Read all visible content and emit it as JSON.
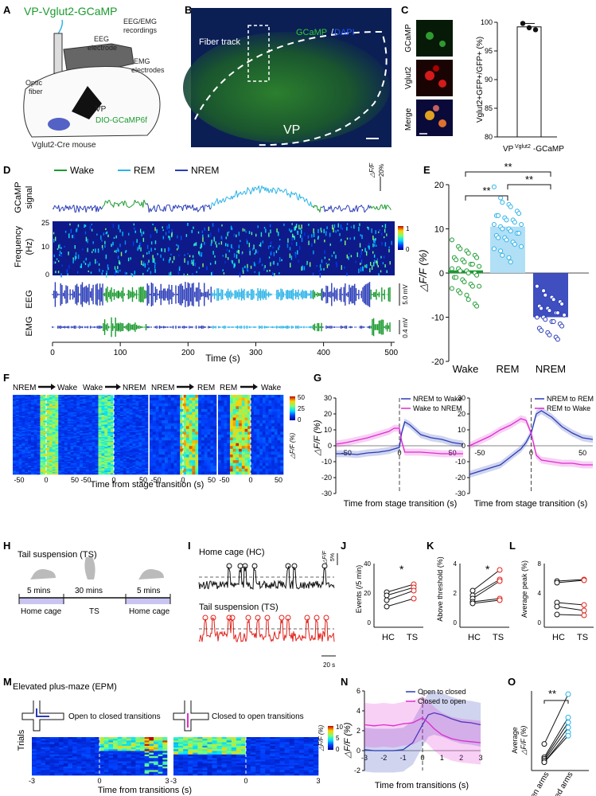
{
  "panels": {
    "A": "A",
    "B": "B",
    "C": "C",
    "D": "D",
    "E": "E",
    "F": "F",
    "G": "G",
    "H": "H",
    "I": "I",
    "J": "J",
    "K": "K",
    "L": "L",
    "M": "M",
    "N": "N",
    "O": "O"
  },
  "colors": {
    "wake": "#1a9a2e",
    "rem": "#2ab3e8",
    "nrem": "#2a3cb8",
    "magenta": "#e02bd0",
    "red": "#e0231c",
    "black": "#111111",
    "gfp": "#33cc33",
    "dapi": "#2255ff"
  },
  "A": {
    "title": "VP-Vglut2-GCaMP",
    "eeg_emg": "EEG/EMG",
    "recordings": "recordings",
    "eeg1": "EEG",
    "eeg2": "electrode",
    "emg1": "EMG",
    "emg2": "electrodes",
    "optic1": "Optic",
    "optic2": "fiber",
    "vp": "VP",
    "dio": "DIO-GCaMP6f",
    "mouse": "Vglut2-Cre mouse"
  },
  "B": {
    "gcamp": "GCaMP",
    "sep": "/",
    "dapi": "DAPI",
    "fiber": "Fiber  track",
    "vp": "VP"
  },
  "C": {
    "row1": "GCaMP",
    "row2": "Vglut2",
    "row3": "Merge",
    "ylabel": "Vglut2+GFP+/GFP+ (%)",
    "xlabel": "VP",
    "xsup": "Vglut2",
    "xsuffix": "-GCaMP"
  },
  "D": {
    "wake": "Wake",
    "rem": "REM",
    "nrem": "NREM",
    "gcamp1": "GCaMP",
    "gcamp2": "signal",
    "freq": "Frequency",
    "hz": "(Hz)",
    "eeg": "EEG",
    "emg": "EMG",
    "xlabel": "Time (s)",
    "scale_dff": "△F/F",
    "scale_20": "20%",
    "eeg_scale": "5.0 mV",
    "emg_scale": "0.4 mV",
    "freq_ticks": [
      "25",
      "10",
      "0"
    ],
    "cbar": [
      "1",
      "0"
    ],
    "xticks": [
      "0",
      "100",
      "200",
      "300",
      "400",
      "500"
    ]
  },
  "E": {
    "ylabel": "△F/F (%)",
    "sig": "**"
  },
  "F": {
    "t1a": "NREM",
    "t1b": "Wake",
    "t2a": "Wake",
    "t2b": "NREM",
    "t3a": "NREM",
    "t3b": "REM",
    "t4a": "REM",
    "t4b": "Wake",
    "xlabel": "Time from stage transition (s)",
    "xticks": [
      "-50",
      "0",
      "50",
      "-50",
      "0",
      "50",
      "-50",
      "0",
      "50",
      "-50",
      "0",
      "50"
    ],
    "cbar_label": "△F/F (%)",
    "cbar": [
      "50",
      "25",
      "0"
    ]
  },
  "G": {
    "left_legend": [
      "NREM to Wake",
      "Wake to NREM"
    ],
    "right_legend": [
      "NREM to REM",
      "REM to Wake"
    ],
    "ylabel": "△F/F (%)",
    "xlabel": "Time from stage transition (s)"
  },
  "H": {
    "title": "Tail suspension (TS)",
    "d1": "5 mins",
    "d2": "30 mins",
    "d3": "5 mins",
    "l1": "Home cage",
    "l2": "TS",
    "l3": "Home cage"
  },
  "I": {
    "hc": "Home cage (HC)",
    "ts": "Tail suspension (TS)",
    "scale_dff": "△F/F",
    "scale_5": "5%",
    "time_scale": "20 s"
  },
  "J": {
    "ylabel": "Events (/5 min)",
    "sig": "*",
    "yticks": [
      "40",
      "20",
      "0"
    ]
  },
  "K": {
    "ylabel": "Above threshold (%)",
    "sig": "*",
    "yticks": [
      "4",
      "2",
      "0"
    ]
  },
  "L": {
    "ylabel": "Average peak (%)",
    "yticks": [
      "8",
      "4",
      "0"
    ]
  },
  "pair_x": [
    "HC",
    "TS"
  ],
  "M": {
    "title": "Elevated plus-maze (EPM)",
    "open_closed": "Open to closed transitions",
    "closed_open": "Closed to open transitions",
    "ylabel": "Trials",
    "xlabel": "Time from transitions (s)",
    "xticks": [
      "-3",
      "0",
      "3"
    ],
    "cbar_label": "△F/F (%)",
    "cbar": [
      "10",
      "5",
      "0"
    ]
  },
  "N": {
    "legend": [
      "Open to closed",
      "Closed to open"
    ],
    "ylabel": "△F/F (%)",
    "xlabel": "Time from transitions (s)"
  },
  "O": {
    "ylabel1": "Average",
    "ylabel2": "△F/F (%)",
    "sig": "**",
    "x1": "Open arms",
    "x2": "Closed arms"
  },
  "chart_data": [
    {
      "type": "bar",
      "id": "C",
      "title": "",
      "xlabel": "VP Vglut2-GCaMP",
      "ylabel": "Vglut2+GFP+/GFP+ (%)",
      "categories": [
        "VP-Vglut2-GCaMP"
      ],
      "values": [
        99.2
      ],
      "points": [
        99.8,
        99.6,
        98.7
      ],
      "ylim": [
        80,
        100
      ],
      "yticks": [
        80,
        85,
        90,
        95,
        100
      ]
    },
    {
      "type": "bar",
      "id": "E",
      "ylabel": "△F/F (%)",
      "categories": [
        "Wake",
        "REM",
        "NREM"
      ],
      "values": [
        0.6,
        10.5,
        -10.0
      ],
      "ylim": [
        -20,
        20
      ],
      "yticks": [
        -20,
        -10,
        0,
        10,
        20
      ],
      "points": {
        "Wake": [
          7.5,
          6,
          5.5,
          5,
          4.5,
          4,
          3.5,
          3.5,
          3,
          3,
          2.5,
          2,
          2,
          1.5,
          1,
          1,
          0.5,
          0.5,
          0,
          0,
          -0.5,
          -1,
          -1,
          -1.5,
          -2,
          -2.5,
          -3,
          -3,
          -3.5,
          -4,
          -4.5,
          -5,
          -6,
          -7,
          -7.5
        ],
        "REM": [
          19.5,
          17,
          16,
          15.5,
          15,
          14,
          13.5,
          13,
          13,
          12.5,
          12,
          12,
          11.5,
          11,
          11,
          10.5,
          10,
          10,
          9.5,
          9,
          9,
          8.5,
          8,
          8,
          7.5,
          7,
          6.5,
          6,
          5.5,
          5,
          4,
          3.5,
          2.5
        ],
        "NREM": [
          -3,
          -4,
          -5,
          -5.5,
          -6,
          -6.5,
          -7,
          -7.5,
          -8,
          -8,
          -8.5,
          -9,
          -9,
          -9.5,
          -10,
          -10,
          -10.5,
          -11,
          -11,
          -11.5,
          -12,
          -12.5,
          -13,
          -13.5,
          -14,
          -14.5,
          -15
        ]
      },
      "comparisons": [
        [
          "Wake",
          "REM",
          "**"
        ],
        [
          "REM",
          "NREM",
          "**"
        ],
        [
          "Wake",
          "NREM",
          "**"
        ]
      ]
    },
    {
      "type": "line",
      "id": "G-left",
      "x_range": [
        -60,
        60
      ],
      "xticks": [
        -50,
        0,
        50
      ],
      "ylim": [
        -30,
        30
      ],
      "yticks": [
        -30,
        -20,
        -10,
        0,
        10,
        20,
        30
      ],
      "series": [
        {
          "name": "NREM to Wake",
          "color": "#2a3cb8",
          "x": [
            -60,
            -50,
            -40,
            -30,
            -20,
            -10,
            -5,
            0,
            2,
            5,
            10,
            20,
            30,
            40,
            50,
            60
          ],
          "y": [
            -5,
            -5,
            -5.5,
            -4.5,
            -4,
            -3,
            -2,
            -1,
            8,
            15,
            13,
            7,
            5,
            4,
            2,
            1
          ]
        },
        {
          "name": "Wake to NREM",
          "color": "#e02bd0",
          "x": [
            -60,
            -50,
            -40,
            -30,
            -20,
            -10,
            -5,
            0,
            2,
            5,
            10,
            20,
            30,
            40,
            50,
            60
          ],
          "y": [
            1,
            2,
            3.5,
            5,
            7,
            9,
            11,
            11,
            3,
            -4,
            -4,
            -4,
            -4.5,
            -5,
            -5,
            -5
          ]
        }
      ]
    },
    {
      "type": "line",
      "id": "G-right",
      "x_range": [
        -60,
        60
      ],
      "xticks": [
        -50,
        0,
        50
      ],
      "ylim": [
        -30,
        30
      ],
      "yticks": [
        -30,
        -20,
        -10,
        0,
        10,
        20,
        30
      ],
      "series": [
        {
          "name": "NREM to REM",
          "color": "#2a3cb8",
          "x": [
            -60,
            -50,
            -40,
            -30,
            -20,
            -10,
            -5,
            0,
            5,
            10,
            20,
            30,
            40,
            50,
            60
          ],
          "y": [
            -18,
            -16,
            -14,
            -12,
            -7,
            -2,
            2,
            8,
            20,
            22,
            18,
            12,
            8,
            5,
            4
          ]
        },
        {
          "name": "REM to Wake",
          "color": "#e02bd0",
          "x": [
            -60,
            -50,
            -40,
            -30,
            -20,
            -10,
            -5,
            0,
            5,
            10,
            20,
            30,
            40,
            50,
            60
          ],
          "y": [
            0,
            3,
            6,
            10,
            13,
            17,
            16,
            8,
            -6,
            -9,
            -10,
            -11,
            -11,
            -12,
            -12
          ]
        }
      ]
    },
    {
      "type": "line",
      "id": "J",
      "categories": [
        "HC",
        "TS"
      ],
      "ylabel": "Events (/5 min)",
      "ylim": [
        0,
        40
      ],
      "pairs": [
        [
          22,
          27
        ],
        [
          20,
          25
        ],
        [
          17,
          23
        ],
        [
          13,
          18
        ]
      ]
    },
    {
      "type": "line",
      "id": "K",
      "categories": [
        "HC",
        "TS"
      ],
      "ylabel": "Above threshold (%)",
      "ylim": [
        0,
        4
      ],
      "pairs": [
        [
          2.3,
          3.6
        ],
        [
          2.0,
          3.0
        ],
        [
          1.8,
          2.9
        ],
        [
          1.6,
          1.8
        ],
        [
          1.5,
          1.7
        ]
      ]
    },
    {
      "type": "line",
      "id": "L",
      "categories": [
        "HC",
        "TS"
      ],
      "ylabel": "Average peak (%)",
      "ylim": [
        0,
        8
      ],
      "pairs": [
        [
          5.8,
          6.0
        ],
        [
          5.6,
          5.9
        ],
        [
          3.1,
          2.8
        ],
        [
          2.6,
          2.1
        ],
        [
          1.6,
          1.5
        ]
      ]
    },
    {
      "type": "line",
      "id": "N",
      "x_range": [
        -3,
        3
      ],
      "xticks": [
        -3,
        -2,
        -1,
        0,
        1,
        2,
        3
      ],
      "ylim": [
        -2,
        6
      ],
      "yticks": [
        -2,
        0,
        2,
        4,
        6
      ],
      "series": [
        {
          "name": "Open to closed",
          "color": "#2a3cb8",
          "x": [
            -3,
            -2.5,
            -2,
            -1.5,
            -1,
            -0.5,
            0,
            0.3,
            0.6,
            1,
            1.5,
            2,
            2.5,
            3
          ],
          "y": [
            0.1,
            0,
            0,
            0,
            0.1,
            0.8,
            2.6,
            3.6,
            3.8,
            3.6,
            3.2,
            2.9,
            2.8,
            2.6
          ]
        },
        {
          "name": "Closed to open",
          "color": "#e02bd0",
          "x": [
            -3,
            -2.5,
            -2,
            -1.5,
            -1,
            -0.5,
            0,
            0.3,
            0.6,
            1,
            1.5,
            2,
            2.5,
            3
          ],
          "y": [
            2.6,
            2.5,
            2.6,
            2.5,
            2.7,
            2.8,
            3.3,
            2.8,
            2.2,
            1.6,
            1.2,
            1.0,
            0.9,
            0.8
          ]
        }
      ]
    },
    {
      "type": "line",
      "id": "O",
      "categories": [
        "Open arms",
        "Closed arms"
      ],
      "ylabel": "Average △F/F (%)",
      "ylim": [
        0,
        4.8
      ],
      "pairs": [
        [
          1.6,
          4.6
        ],
        [
          0.8,
          3.2
        ],
        [
          0.7,
          2.9
        ],
        [
          0.6,
          2.6
        ],
        [
          0.5,
          2.3
        ],
        [
          0.5,
          2.1
        ]
      ]
    }
  ]
}
